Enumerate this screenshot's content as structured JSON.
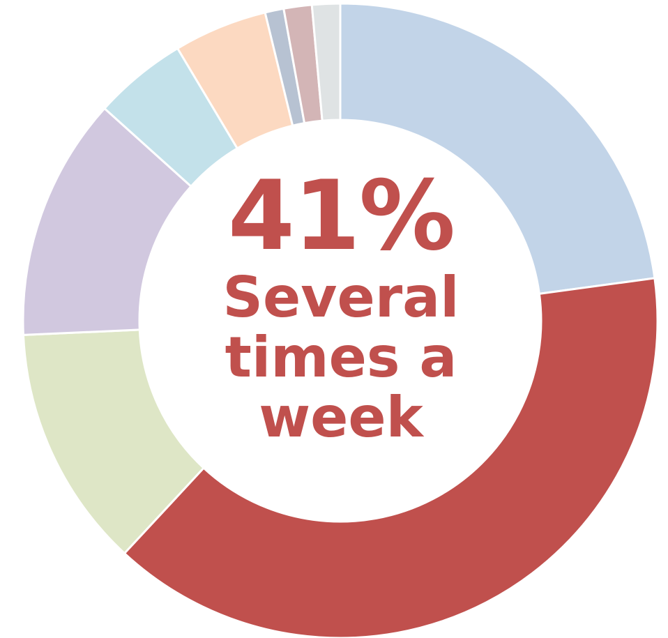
{
  "chart_data": {
    "type": "pie",
    "title": "",
    "categories": [
      "",
      "Several times a week",
      "",
      "",
      "",
      "",
      "",
      "",
      ""
    ],
    "values": [
      24,
      41,
      13,
      13,
      5,
      5,
      1,
      1.5,
      1.5
    ],
    "colors": [
      "#c2d4e8",
      "#c0504d",
      "#dee6c6",
      "#d1c8df",
      "#c3e1ea",
      "#fcd9c1",
      "#b7c2d2",
      "#d3b5b6",
      "#dfe3e4"
    ],
    "highlight": {
      "value": "41%",
      "label": "Several times a week"
    }
  }
}
